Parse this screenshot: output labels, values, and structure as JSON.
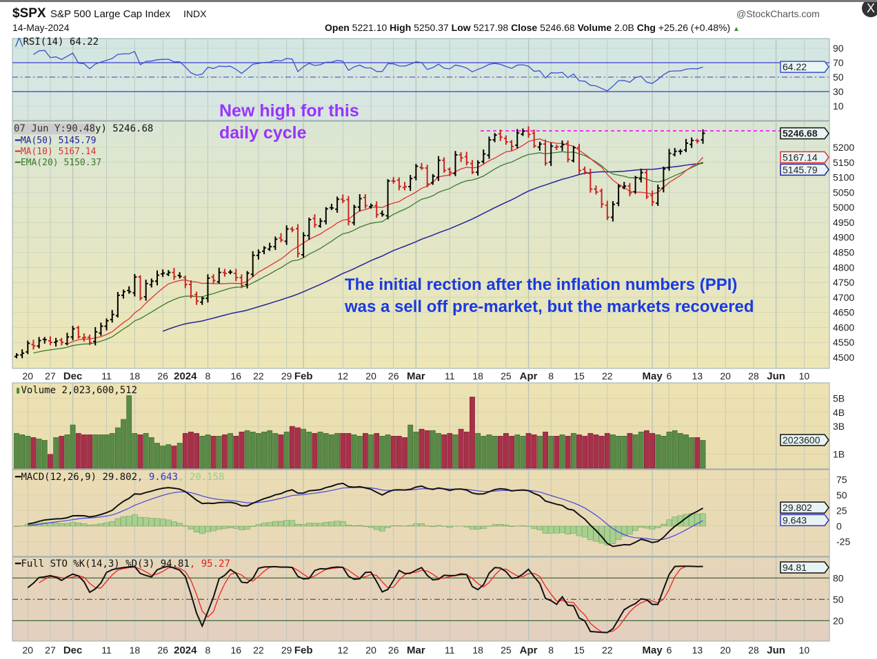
{
  "header": {
    "symbol": "$SPX",
    "name": "S&P 500 Large Cap Index",
    "exchange": "INDX",
    "date": "14-May-2024",
    "watermark": "@StockCharts.com",
    "open_label": "Open",
    "open": "5221.10",
    "high_label": "High",
    "high": "5250.37",
    "low_label": "Low",
    "low": "5217.98",
    "close_label": "Close",
    "close": "5246.68",
    "volume_label": "Volume",
    "volume": "2.0B",
    "chg_label": "Chg",
    "chg": "+25.26 (+0.48%)",
    "close_button": "X"
  },
  "colors": {
    "up": "#000000",
    "down": "#cc2222",
    "ma50": "#22229a",
    "ma10": "#dd3333",
    "ema20": "#3a7a2a",
    "annot_purple": "#9933ff",
    "annot_blue": "#1a3ae0",
    "vol_up": "#5a8a48",
    "vol_down": "#a8304a"
  },
  "annotations": {
    "new_high_1": "New high for this",
    "new_high_2": "daily cycle",
    "ppi_1": "The initial rection after the inflation numbers (PPI)",
    "ppi_2": "was a sell off pre-market, but the markets recovered"
  },
  "rsi": {
    "label": "RSI(14) 64.22",
    "value_tag": "64.22",
    "ticks": [
      90,
      70,
      50,
      30,
      10
    ]
  },
  "price": {
    "tooltip": "07 Jun Y:90.48",
    "legend_tail": "y) 5246.68",
    "ma50": "MA(50) 5145.79",
    "ma10": "MA(10) 5167.14",
    "ema20": "EMA(20) 5150.37",
    "tag_close": "5246.68",
    "tag_ma10": "5167.14",
    "tag_ma50": "5145.79",
    "resistance": 5255,
    "ticks": [
      5200,
      5150,
      5100,
      5050,
      5000,
      4950,
      4900,
      4850,
      4800,
      4750,
      4700,
      4650,
      4600,
      4550,
      4500
    ]
  },
  "volume": {
    "label": "Volume 2,023,600,512",
    "tag": "2023600",
    "ticks": [
      "5B",
      "4B",
      "3B",
      "1B"
    ],
    "tick_values": [
      5,
      4,
      3,
      1
    ]
  },
  "macd": {
    "label_a": "MACD(12,26,9) 29.802",
    "label_b": ", 9.643",
    "label_c": ", 20.158",
    "tag_macd": "29.802",
    "tag_signal": "9.643",
    "ticks": [
      75,
      50,
      25,
      0,
      -25
    ]
  },
  "sto": {
    "label_a": "Full STO %K(14,3) %D(3) 94.81",
    "label_b": ", 95.27",
    "tag": "94.81",
    "ticks": [
      80,
      50,
      20
    ]
  },
  "date_axis": [
    {
      "i": 2,
      "t": "20"
    },
    {
      "i": 6,
      "t": "27"
    },
    {
      "i": 10,
      "t": "Dec",
      "b": 1
    },
    {
      "i": 16,
      "t": "11"
    },
    {
      "i": 21,
      "t": "18"
    },
    {
      "i": 26,
      "t": "26"
    },
    {
      "i": 30,
      "t": "2024",
      "b": 1
    },
    {
      "i": 34,
      "t": "8"
    },
    {
      "i": 39,
      "t": "16"
    },
    {
      "i": 43,
      "t": "22"
    },
    {
      "i": 48,
      "t": "29"
    },
    {
      "i": 51,
      "t": "Feb",
      "b": 1
    },
    {
      "i": 58,
      "t": "12"
    },
    {
      "i": 63,
      "t": "20"
    },
    {
      "i": 67,
      "t": "26"
    },
    {
      "i": 71,
      "t": "Mar",
      "b": 1
    },
    {
      "i": 77,
      "t": "11"
    },
    {
      "i": 82,
      "t": "18"
    },
    {
      "i": 87,
      "t": "25"
    },
    {
      "i": 91,
      "t": "Apr",
      "b": 1
    },
    {
      "i": 95,
      "t": "8"
    },
    {
      "i": 100,
      "t": "15"
    },
    {
      "i": 105,
      "t": "22"
    },
    {
      "i": 113,
      "t": "May",
      "b": 1
    },
    {
      "i": 116,
      "t": "6"
    },
    {
      "i": 121,
      "t": "13"
    },
    {
      "i": 126,
      "t": "20"
    },
    {
      "i": 131,
      "t": "28"
    },
    {
      "i": 135,
      "t": "Jun",
      "b": 1
    },
    {
      "i": 140,
      "t": "10"
    }
  ],
  "chart_data": {
    "type": "ohlc",
    "title": "$SPX S&P 500 Large Cap Index",
    "x_range": [
      "2023-11-16",
      "2024-05-14"
    ],
    "ylim": [
      4480,
      5280
    ],
    "closes": [
      4508,
      4514,
      4547,
      4538,
      4556,
      4559,
      4550,
      4554,
      4550,
      4568,
      4595,
      4569,
      4567,
      4549,
      4585,
      4604,
      4622,
      4643,
      4707,
      4719,
      4719,
      4768,
      4698,
      4746,
      4754,
      4774,
      4781,
      4783,
      4769,
      4770,
      4743,
      4705,
      4688,
      4697,
      4764,
      4756,
      4783,
      4780,
      4784,
      4766,
      4739,
      4781,
      4840,
      4850,
      4865,
      4869,
      4894,
      4891,
      4928,
      4925,
      4846,
      4906,
      4959,
      4942,
      4954,
      4995,
      4998,
      5027,
      5022,
      4953,
      5001,
      5029,
      5006,
      5006,
      4976,
      4976,
      5088,
      5087,
      5070,
      5069,
      5096,
      5137,
      5131,
      5078,
      5104,
      5157,
      5123,
      5117,
      5175,
      5165,
      5150,
      5117,
      5149,
      5178,
      5225,
      5241,
      5234,
      5218,
      5203,
      5248,
      5254,
      5243,
      5205,
      5211,
      5147,
      5204,
      5202,
      5209,
      5160,
      5199,
      5123,
      5117,
      5061,
      5051,
      5011,
      4967,
      5010,
      5070,
      5071,
      5048,
      5099,
      5116,
      5036,
      5018,
      5064,
      5128,
      5180,
      5187,
      5187,
      5214,
      5223,
      5221,
      5247
    ],
    "volumes_billions": [
      2.5,
      2.4,
      2.3,
      2.2,
      2.1,
      2.0,
      1.0,
      2.2,
      2.3,
      2.4,
      3.1,
      2.5,
      2.4,
      2.4,
      2.4,
      2.4,
      2.4,
      2.5,
      2.9,
      3.5,
      5.2,
      2.5,
      2.4,
      2.5,
      2.2,
      1.8,
      1.6,
      1.7,
      1.6,
      1.8,
      2.5,
      2.6,
      2.5,
      2.3,
      2.4,
      2.3,
      2.3,
      2.4,
      2.5,
      2.3,
      2.6,
      2.7,
      2.6,
      2.5,
      2.6,
      2.7,
      2.5,
      2.4,
      2.6,
      3.0,
      2.9,
      2.8,
      2.6,
      2.5,
      2.6,
      2.5,
      2.4,
      2.5,
      2.5,
      2.5,
      2.4,
      2.3,
      2.5,
      2.4,
      2.5,
      2.3,
      2.4,
      2.3,
      2.3,
      2.2,
      3.1,
      2.6,
      2.8,
      2.7,
      2.7,
      2.5,
      2.4,
      2.5,
      2.4,
      2.8,
      2.6,
      5.1,
      2.5,
      2.3,
      2.4,
      2.3,
      2.3,
      2.5,
      2.3,
      2.4,
      2.3,
      2.5,
      2.4,
      2.3,
      2.6,
      2.3,
      2.3,
      2.4,
      2.3,
      2.5,
      2.4,
      2.3,
      2.5,
      2.4,
      2.3,
      2.5,
      2.4,
      2.3,
      2.3,
      2.5,
      2.4,
      2.6,
      2.7,
      2.5,
      2.4,
      2.3,
      2.6,
      2.7,
      2.5,
      2.4,
      2.2,
      2.2,
      2.0
    ]
  }
}
